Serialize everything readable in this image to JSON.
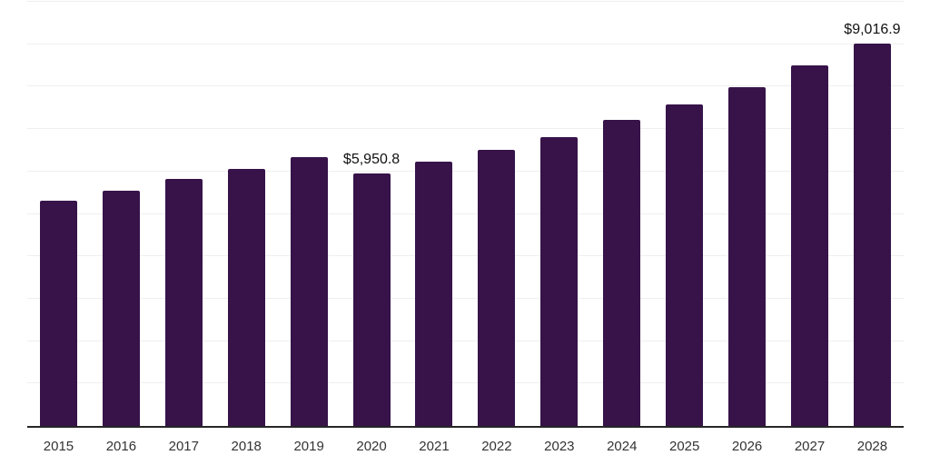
{
  "chart_data": {
    "type": "bar",
    "title": "",
    "xlabel": "",
    "ylabel": "",
    "categories": [
      "2015",
      "2016",
      "2017",
      "2018",
      "2019",
      "2020",
      "2021",
      "2022",
      "2023",
      "2024",
      "2025",
      "2026",
      "2027",
      "2028"
    ],
    "values": [
      5320,
      5540,
      5830,
      6065,
      6340,
      5950.8,
      6230,
      6510,
      6820,
      7210,
      7580,
      7995,
      8505,
      9016.9
    ],
    "data_labels": [
      "",
      "",
      "",
      "",
      "",
      "$5,950.8",
      "",
      "",
      "",
      "",
      "",
      "",
      "",
      "$9,016.9"
    ],
    "ylim": [
      0,
      10000
    ],
    "gridline_interval": 1000,
    "grid": "horizontal",
    "legend_position": "none",
    "colors": {
      "bar": "#371349",
      "grid": "#efefef",
      "axis": "#262626",
      "tick_label": "#333333",
      "data_label": "#111111",
      "background": "#ffffff"
    }
  }
}
